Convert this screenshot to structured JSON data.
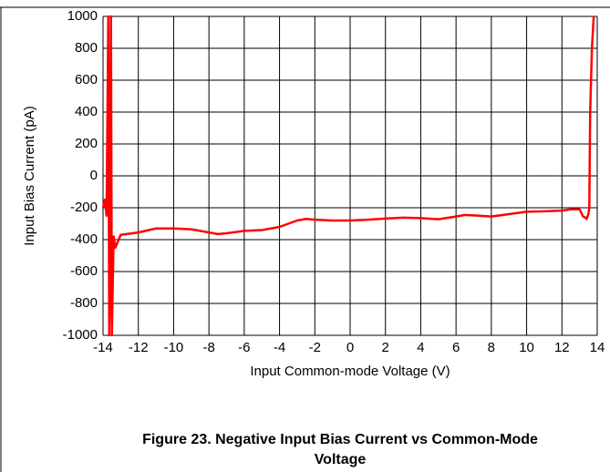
{
  "chart_data": {
    "type": "line",
    "caption": [
      "Figure 23. Negative Input Bias Current vs Common-Mode",
      "Voltage"
    ],
    "xlabel": "Input Common-mode Voltage (V)",
    "ylabel": "Input Bias Current (pA)",
    "xlim": [
      -14,
      14
    ],
    "ylim": [
      -1000,
      1000
    ],
    "xticks": [
      -14,
      -12,
      -10,
      -8,
      -6,
      -4,
      -2,
      0,
      2,
      4,
      6,
      8,
      10,
      12,
      14
    ],
    "yticks": [
      -1000,
      -800,
      -600,
      -400,
      -200,
      0,
      200,
      400,
      600,
      800,
      1000
    ],
    "grid": true,
    "series": [
      {
        "color": "#ff0000",
        "x": [
          -14,
          -13.9,
          -13.8,
          -13.7,
          -13.65,
          -13.6,
          -13.55,
          -13.5,
          -13.4,
          -13.3,
          -13,
          -12,
          -11,
          -10,
          -9,
          -8,
          -7.5,
          -7,
          -6,
          -5,
          -4,
          -3,
          -2.5,
          -2,
          -1,
          0,
          1,
          2,
          3,
          4,
          5,
          6,
          6.5,
          7,
          8,
          9,
          10,
          11,
          12,
          12.5,
          13,
          13.2,
          13.3,
          13.4,
          13.5,
          13.55,
          13.6,
          13.7,
          13.8
        ],
        "values": [
          -200,
          -150,
          -250,
          1000,
          -1000,
          -500,
          1000,
          -1000,
          -380,
          -450,
          -370,
          -355,
          -330,
          -330,
          -335,
          -355,
          -365,
          -360,
          -345,
          -340,
          -320,
          -280,
          -270,
          -275,
          -280,
          -280,
          -275,
          -268,
          -262,
          -265,
          -272,
          -255,
          -245,
          -248,
          -255,
          -240,
          -225,
          -222,
          -218,
          -210,
          -210,
          -255,
          -260,
          -270,
          -240,
          -200,
          400,
          800,
          1000
        ]
      }
    ]
  }
}
